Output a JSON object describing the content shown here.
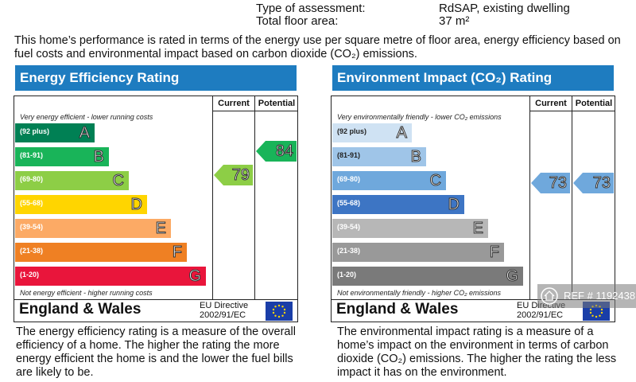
{
  "meta": {
    "assessment_label": "Type of assessment:",
    "assessment_value": "RdSAP, existing dwelling",
    "floor_label": "Total floor area:",
    "floor_value": "37 m²"
  },
  "intro": "This home’s performance is rated in terms of the energy use per square metre of floor area, energy efficiency based on fuel costs and environmental impact based on carbon dioxide (CO₂) emissions.",
  "energy": {
    "title": "Energy Efficiency Rating",
    "col_current": "Current",
    "col_potential": "Potential",
    "top_note": "Very energy efficient - lower running costs",
    "bottom_note": "Not energy efficient - higher running costs",
    "bands": [
      {
        "range": "(92 plus)",
        "letter": "A",
        "color": "#008054"
      },
      {
        "range": "(81-91)",
        "letter": "B",
        "color": "#19b459"
      },
      {
        "range": "(69-80)",
        "letter": "C",
        "color": "#8dce46"
      },
      {
        "range": "(55-68)",
        "letter": "D",
        "color": "#ffd500"
      },
      {
        "range": "(39-54)",
        "letter": "E",
        "color": "#fcaa65"
      },
      {
        "range": "(21-38)",
        "letter": "F",
        "color": "#ef8023"
      },
      {
        "range": "(1-20)",
        "letter": "G",
        "color": "#e9153b"
      }
    ],
    "current": "79",
    "current_color": "#8dce46",
    "potential": "84",
    "potential_color": "#19b459",
    "region": "England & Wales",
    "directive": "EU Directive 2002/91/EC",
    "description": "The energy efficiency rating is a measure of the overall efficiency of a home. The higher the rating the more energy efficient the home is and the lower the fuel bills are likely to be."
  },
  "environment": {
    "title": "Environment Impact (CO₂) Rating",
    "col_current": "Current",
    "col_potential": "Potential",
    "top_note": "Very environmentally friendly - lower CO₂ emissions",
    "bottom_note": "Not environmentally friendly - higher CO₂ emissions",
    "bands": [
      {
        "range": "(92 plus)",
        "letter": "A",
        "color": "#cfe2f3"
      },
      {
        "range": "(81-91)",
        "letter": "B",
        "color": "#9fc5e8"
      },
      {
        "range": "(69-80)",
        "letter": "C",
        "color": "#6fa8dc"
      },
      {
        "range": "(55-68)",
        "letter": "D",
        "color": "#3d75c4"
      },
      {
        "range": "(39-54)",
        "letter": "E",
        "color": "#b7b7b7"
      },
      {
        "range": "(21-38)",
        "letter": "F",
        "color": "#999999"
      },
      {
        "range": "(1-20)",
        "letter": "G",
        "color": "#7a7a7a"
      }
    ],
    "current": "73",
    "current_color": "#6fa8dc",
    "potential": "73",
    "potential_color": "#6fa8dc",
    "region": "England & Wales",
    "directive": "EU Directive 2002/91/EC",
    "description": "The environmental impact rating is a measure of a home’s impact on the environment in terms of carbon dioxide (CO₂) emissions. The higher the rating the less impact it has on the environment."
  },
  "watermark": {
    "text": "REF # 1192438",
    "icon": "home-icon"
  }
}
